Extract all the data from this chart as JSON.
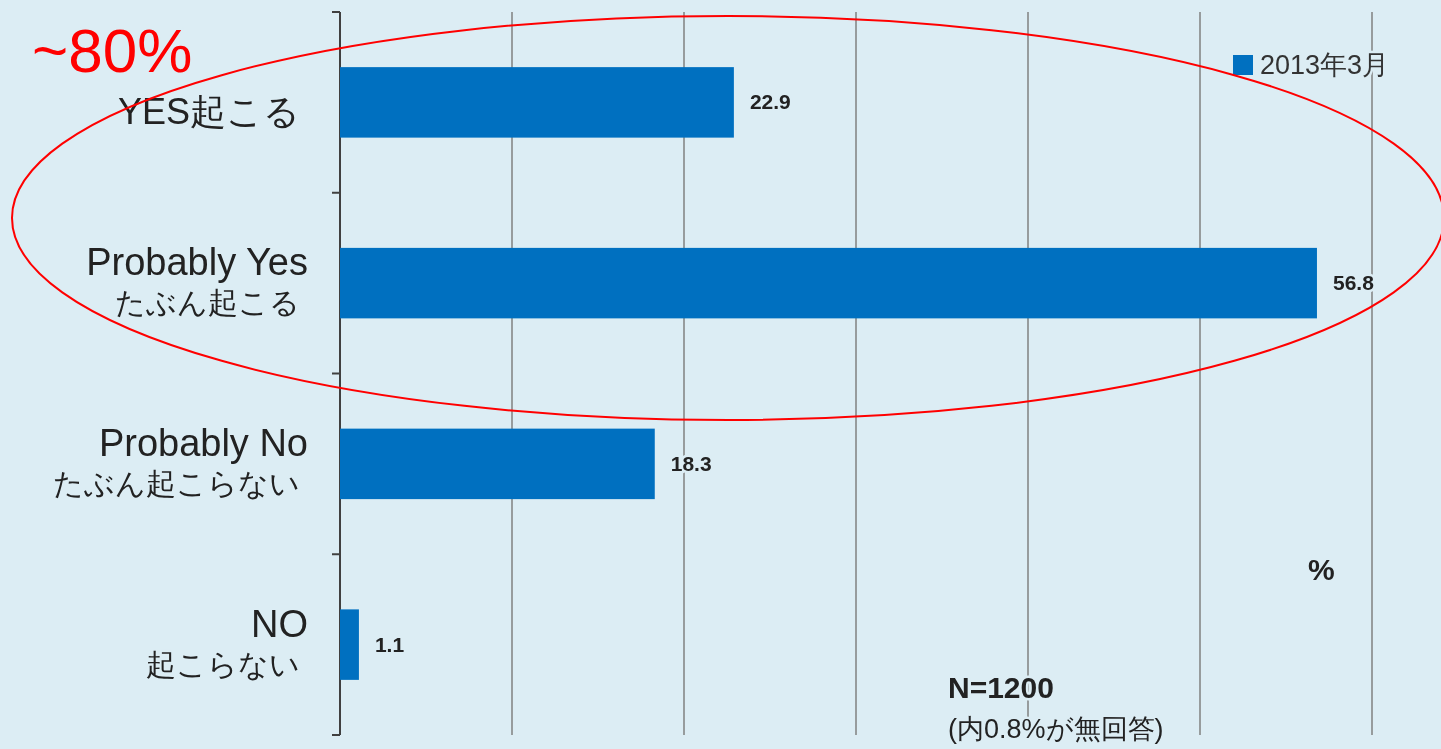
{
  "chart_data": {
    "type": "bar",
    "orientation": "horizontal",
    "categories": [
      "YES起こる",
      "Probably Yes\nたぶん起こる",
      "Probably No\nたぶん起こらない",
      "NO\n起こらない"
    ],
    "series": [
      {
        "name": "2013年3月",
        "color": "#0070c0",
        "values": [
          22.9,
          56.8,
          18.3,
          1.1
        ]
      }
    ],
    "xticks": [
      {
        "value": 0,
        "label": null
      },
      {
        "value": 10,
        "label": null
      },
      {
        "value": 20,
        "label": null
      },
      {
        "value": 30,
        "label": null
      },
      {
        "value": 40,
        "label": null
      },
      {
        "value": 50,
        "label": null
      },
      {
        "value": 60,
        "label": null
      }
    ],
    "grid": "x",
    "legend": "top right",
    "data_labels": true,
    "tick_labels": "y",
    "annotations": [
      "~80%",
      "%",
      "N=1200",
      "(内0.8%が無回答)"
    ]
  }
}
